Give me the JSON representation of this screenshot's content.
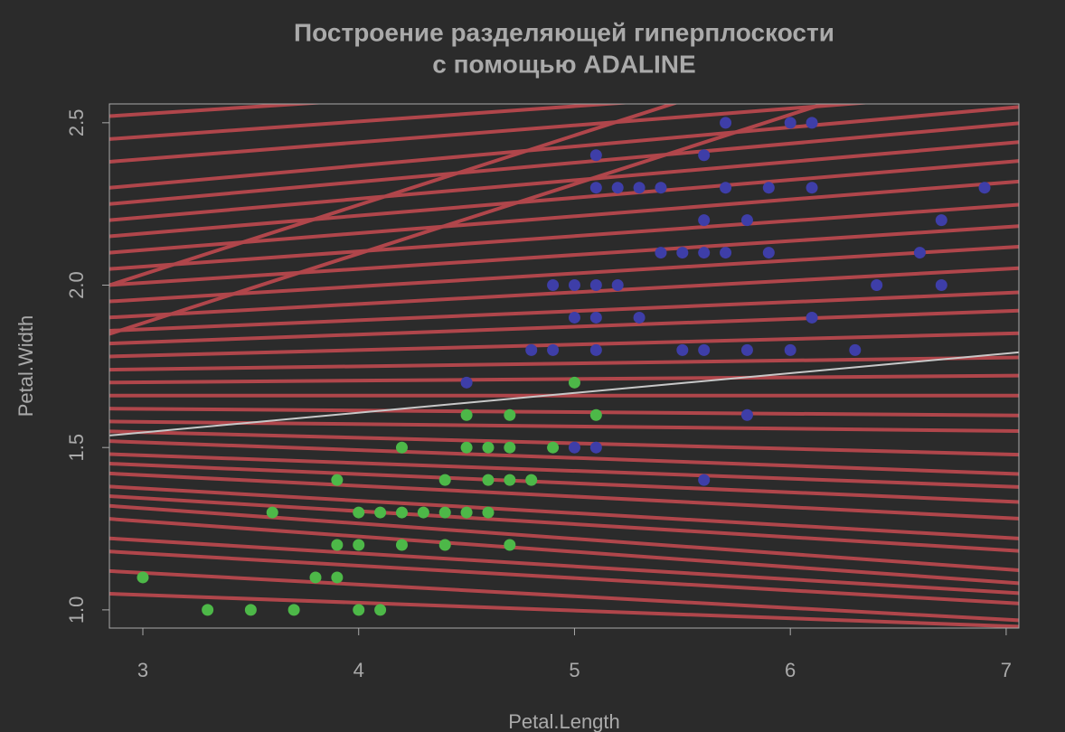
{
  "chart_data": {
    "type": "scatter",
    "title": [
      "Построение разделяющей гиперплоскости",
      "с помощью ADALINE"
    ],
    "x_label": "Petal.Length",
    "y_label": "Petal.Width",
    "xlim": [
      2.845,
      7.059
    ],
    "ylim": [
      0.944,
      2.558
    ],
    "xticks": [
      3,
      4,
      5,
      6,
      7
    ],
    "yticks": [
      1.0,
      1.5,
      2.0,
      2.5
    ],
    "series": [
      {
        "color": "#4db848",
        "x": [
          3.0,
          3.3,
          3.5,
          3.7,
          3.6,
          3.8,
          3.9,
          3.9,
          3.9,
          4.0,
          4.0,
          4.0,
          4.1,
          4.1,
          4.2,
          4.2,
          4.2,
          4.3,
          4.4,
          4.4,
          4.4,
          4.5,
          4.5,
          4.5,
          4.6,
          4.6,
          4.6,
          4.7,
          4.7,
          4.7,
          4.7,
          4.8,
          4.9,
          5.0,
          5.1
        ],
        "values": [
          1.1,
          1.0,
          1.0,
          1.0,
          1.3,
          1.1,
          1.1,
          1.2,
          1.4,
          1.0,
          1.2,
          1.3,
          1.0,
          1.3,
          1.2,
          1.3,
          1.5,
          1.3,
          1.2,
          1.3,
          1.4,
          1.3,
          1.5,
          1.6,
          1.3,
          1.4,
          1.5,
          1.2,
          1.4,
          1.5,
          1.6,
          1.4,
          1.5,
          1.7,
          1.6
        ]
      },
      {
        "color": "#3e3ea8",
        "x": [
          4.5,
          4.8,
          4.9,
          4.9,
          5.0,
          5.0,
          5.0,
          5.1,
          5.1,
          5.1,
          5.1,
          5.1,
          5.1,
          5.2,
          5.2,
          5.3,
          5.3,
          5.4,
          5.4,
          5.5,
          5.5,
          5.6,
          5.6,
          5.6,
          5.6,
          5.6,
          5.7,
          5.7,
          5.7,
          5.8,
          5.8,
          5.8,
          5.9,
          5.9,
          6.0,
          6.0,
          6.1,
          6.1,
          6.1,
          6.3,
          6.4,
          6.6,
          6.7,
          6.7,
          6.9
        ],
        "values": [
          1.7,
          1.8,
          1.8,
          2.0,
          1.5,
          1.9,
          2.0,
          1.5,
          1.8,
          1.9,
          2.0,
          2.3,
          2.4,
          2.0,
          2.3,
          1.9,
          2.3,
          2.1,
          2.3,
          1.8,
          2.1,
          1.4,
          1.8,
          2.1,
          2.2,
          2.4,
          2.1,
          2.3,
          2.5,
          1.6,
          1.8,
          2.2,
          2.1,
          2.3,
          1.8,
          2.5,
          1.9,
          2.3,
          2.5,
          1.8,
          2.0,
          2.1,
          2.0,
          2.2,
          2.3
        ]
      }
    ],
    "hyperplanes": {
      "color": "#b0464b",
      "lines": [
        {
          "intercept": 1.118,
          "slope": -0.024
        },
        {
          "intercept": 1.222,
          "slope": -0.036
        },
        {
          "intercept": 1.288,
          "slope": -0.038
        },
        {
          "intercept": 1.334,
          "slope": -0.04
        },
        {
          "intercept": 1.414,
          "slope": -0.047
        },
        {
          "intercept": 1.454,
          "slope": -0.047
        },
        {
          "intercept": 1.464,
          "slope": -0.04
        },
        {
          "intercept": 1.488,
          "slope": -0.038
        },
        {
          "intercept": 1.514,
          "slope": -0.033
        },
        {
          "intercept": 1.53,
          "slope": -0.028
        },
        {
          "intercept": 1.548,
          "slope": -0.024
        },
        {
          "intercept": 1.588,
          "slope": -0.024
        },
        {
          "intercept": 1.598,
          "slope": -0.017
        },
        {
          "intercept": 1.6,
          "slope": -0.007
        },
        {
          "intercept": 1.634,
          "slope": -0.005
        },
        {
          "intercept": 1.66,
          "slope": 0
        },
        {
          "intercept": 1.686,
          "slope": 0.005
        },
        {
          "intercept": 1.714,
          "slope": 0.009
        },
        {
          "intercept": 1.732,
          "slope": 0.017
        },
        {
          "intercept": 1.752,
          "slope": 0.024
        },
        {
          "intercept": 1.78,
          "slope": 0.028
        },
        {
          "intercept": 1.798,
          "slope": 0.036
        },
        {
          "intercept": 1.836,
          "slope": 0.04
        },
        {
          "intercept": 1.878,
          "slope": 0.043
        },
        {
          "intercept": 1.916,
          "slope": 0.047
        },
        {
          "intercept": 1.952,
          "slope": 0.052
        },
        {
          "intercept": 1.994,
          "slope": 0.055
        },
        {
          "intercept": 2.038,
          "slope": 0.057
        },
        {
          "intercept": 2.082,
          "slope": 0.059
        },
        {
          "intercept": 2.132,
          "slope": 0.059
        },
        {
          "intercept": 2.232,
          "slope": 0.052
        },
        {
          "intercept": 2.316,
          "slope": 0.047
        },
        {
          "intercept": 2.398,
          "slope": 0.043
        },
        {
          "intercept": 1.391,
          "slope": 0.214
        },
        {
          "intercept": 1.241,
          "slope": 0.214
        }
      ]
    },
    "final_line": {
      "color": "#c8c8c8",
      "intercept": 1.364,
      "slope": 0.0608
    }
  }
}
